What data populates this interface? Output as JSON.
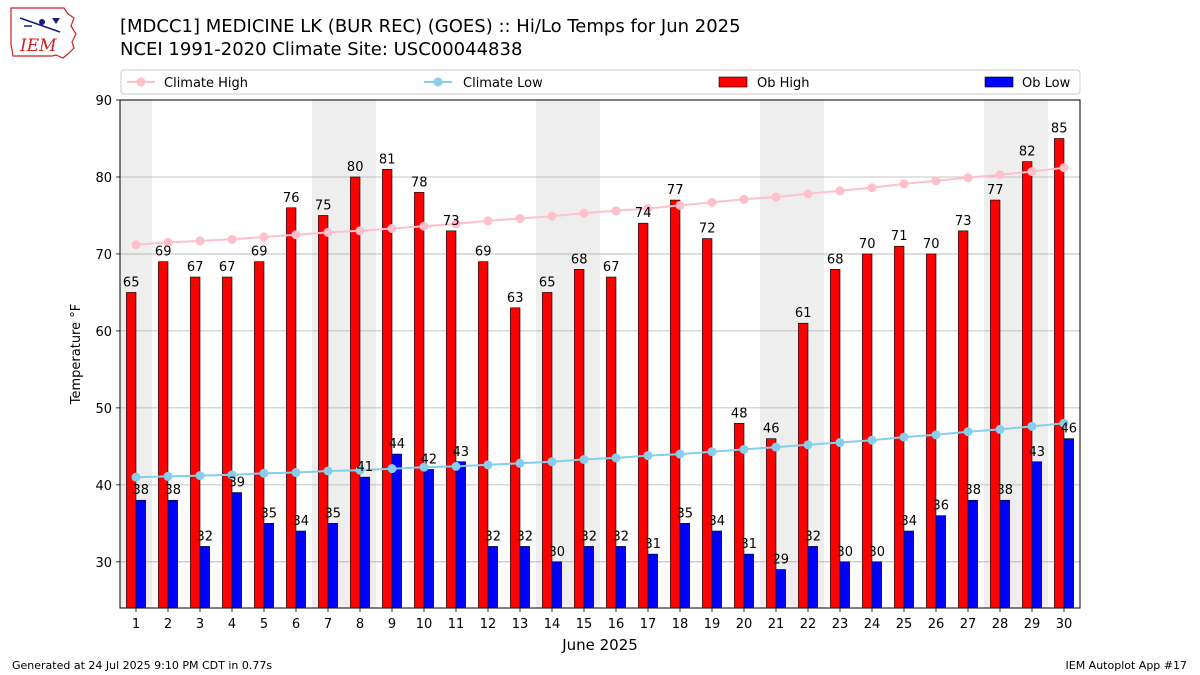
{
  "header": {
    "title_line1": "[MDCC1] MEDICINE LK (BUR REC) (GOES) :: Hi/Lo Temps for Jun 2025",
    "title_line2": "NCEI 1991-2020 Climate Site: USC00044838",
    "logo_text": "IEM"
  },
  "footer": {
    "generated": "Generated at 24 Jul 2025 9:10 PM CDT in 0.77s",
    "app": "IEM Autoplot App #17"
  },
  "colors": {
    "ob_high": "#ff0000",
    "ob_low": "#0000ff",
    "climate_high": "#ffc0cb",
    "climate_low": "#87ceeb",
    "weekend_band": "#eeeeee",
    "logo": "#cc2222"
  },
  "chart_data": {
    "type": "bar",
    "xlabel": "June 2025",
    "ylabel": "Temperature °F",
    "ylim": [
      24,
      90
    ],
    "yticks": [
      30,
      40,
      50,
      60,
      70,
      80,
      90
    ],
    "grid": true,
    "legend_placement": "top",
    "categories": [
      "1",
      "2",
      "3",
      "4",
      "5",
      "6",
      "7",
      "8",
      "9",
      "10",
      "11",
      "12",
      "13",
      "14",
      "15",
      "16",
      "17",
      "18",
      "19",
      "20",
      "21",
      "22",
      "23",
      "24",
      "25",
      "26",
      "27",
      "28",
      "29",
      "30"
    ],
    "shaded_days": [
      1,
      7,
      8,
      14,
      15,
      21,
      22,
      28,
      29
    ],
    "series": [
      {
        "name": "Ob High",
        "kind": "bar",
        "values": [
          65,
          69,
          67,
          67,
          69,
          76,
          75,
          80,
          81,
          78,
          73,
          69,
          63,
          65,
          68,
          67,
          74,
          77,
          72,
          48,
          46,
          61,
          68,
          70,
          71,
          70,
          73,
          77,
          82,
          85
        ]
      },
      {
        "name": "Ob Low",
        "kind": "bar",
        "values": [
          38,
          38,
          32,
          39,
          35,
          34,
          35,
          41,
          44,
          42,
          43,
          32,
          32,
          30,
          32,
          32,
          31,
          35,
          34,
          31,
          29,
          32,
          30,
          30,
          34,
          36,
          38,
          38,
          43,
          46
        ]
      },
      {
        "name": "Climate High",
        "kind": "line",
        "values": [
          71.2,
          71.5,
          71.7,
          71.9,
          72.2,
          72.5,
          72.8,
          73.0,
          73.3,
          73.6,
          73.9,
          74.3,
          74.6,
          74.9,
          75.3,
          75.6,
          75.9,
          76.3,
          76.7,
          77.1,
          77.4,
          77.8,
          78.2,
          78.6,
          79.1,
          79.5,
          79.9,
          80.3,
          80.7,
          81.2
        ]
      },
      {
        "name": "Climate Low",
        "kind": "line",
        "values": [
          41.0,
          41.1,
          41.2,
          41.3,
          41.5,
          41.6,
          41.8,
          41.9,
          42.1,
          42.3,
          42.4,
          42.6,
          42.8,
          43.0,
          43.3,
          43.5,
          43.8,
          44.0,
          44.3,
          44.6,
          44.9,
          45.2,
          45.5,
          45.8,
          46.2,
          46.5,
          46.9,
          47.2,
          47.6,
          48.0
        ]
      }
    ]
  }
}
